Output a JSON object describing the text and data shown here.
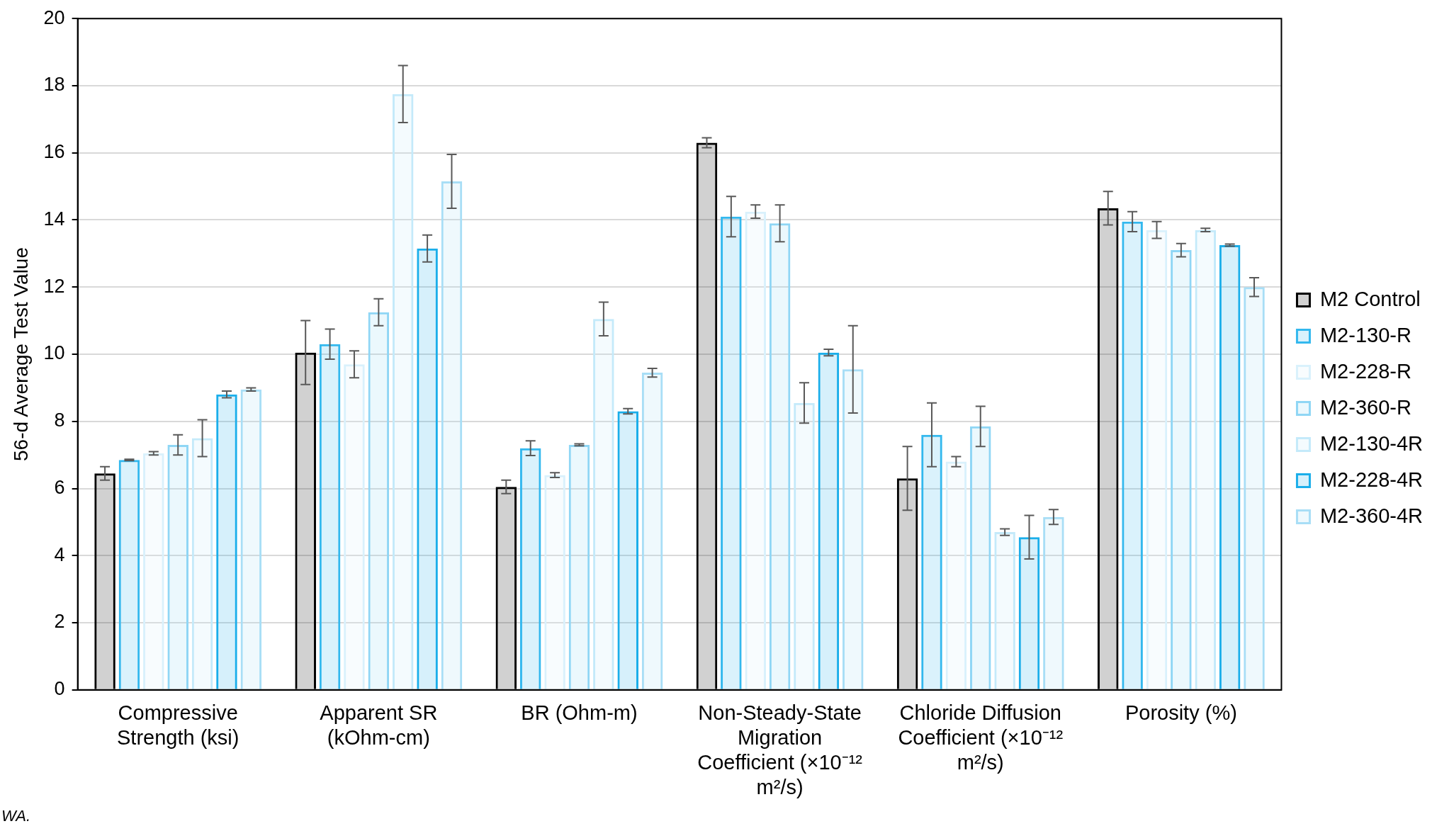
{
  "chart_data": {
    "type": "bar",
    "ylabel": "56-d Average Test Value",
    "categories": [
      "Compressive Strength (ksi)",
      "Apparent SR (kOhm-cm)",
      "BR (Ohm-m)",
      "Non-Steady-State Migration Coefficient (×10⁻¹² m²/s)",
      "Chloride Diffusion Coefficient (×10⁻¹² m²/s)",
      "Porosity (%)"
    ],
    "series": [
      {
        "name": "M2 Control",
        "color": "#000000",
        "values": [
          6.45,
          10.05,
          6.05,
          16.3,
          6.3,
          14.35
        ],
        "errors": [
          0.2,
          0.95,
          0.2,
          0.15,
          0.95,
          0.5
        ]
      },
      {
        "name": "M2-130-R",
        "color": "#33b8ee",
        "values": [
          6.85,
          10.3,
          7.2,
          14.1,
          7.6,
          13.95
        ],
        "errors": [
          0.02,
          0.45,
          0.22,
          0.6,
          0.95,
          0.3
        ]
      },
      {
        "name": "M2-228-R",
        "color": "#d9f1fc",
        "values": [
          7.05,
          9.7,
          6.4,
          14.25,
          6.8,
          13.7
        ],
        "errors": [
          0.05,
          0.4,
          0.07,
          0.2,
          0.15,
          0.25
        ]
      },
      {
        "name": "M2-360-R",
        "color": "#8fd6f5",
        "values": [
          7.3,
          11.25,
          7.3,
          13.9,
          7.85,
          13.1
        ],
        "errors": [
          0.3,
          0.4,
          0.03,
          0.55,
          0.6,
          0.2
        ]
      },
      {
        "name": "M2-130-4R",
        "color": "#c4eafa",
        "values": [
          7.5,
          17.75,
          11.05,
          8.55,
          4.7,
          13.7
        ],
        "errors": [
          0.55,
          0.85,
          0.5,
          0.6,
          0.1,
          0.05
        ]
      },
      {
        "name": "M2-228-4R",
        "color": "#1aaeea",
        "values": [
          8.8,
          13.15,
          8.3,
          10.05,
          4.55,
          13.25
        ],
        "errors": [
          0.1,
          0.4,
          0.08,
          0.1,
          0.65,
          0.03
        ]
      },
      {
        "name": "M2-360-4R",
        "color": "#a8def6",
        "values": [
          8.95,
          15.15,
          9.45,
          9.55,
          5.15,
          12.0
        ],
        "errors": [
          0.05,
          0.8,
          0.13,
          1.3,
          0.22,
          0.28
        ]
      }
    ],
    "ylim": [
      0,
      20
    ],
    "yticks": [
      0,
      2,
      4,
      6,
      8,
      10,
      12,
      14,
      16,
      18,
      20
    ],
    "grid": "y",
    "legend": "right",
    "annotations": [
      "WA."
    ]
  }
}
